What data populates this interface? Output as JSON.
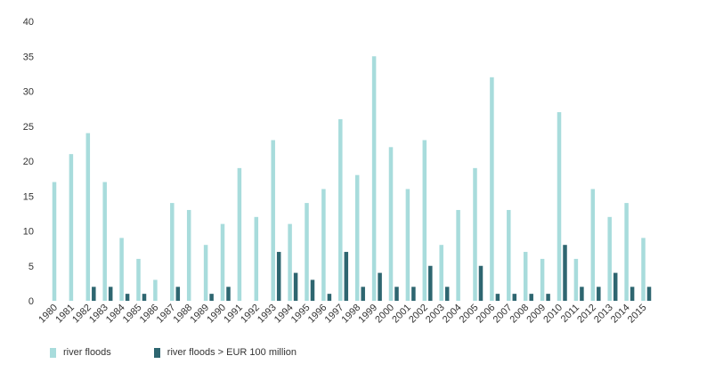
{
  "chart_data": {
    "type": "bar",
    "title": "",
    "xlabel": "",
    "ylabel": "",
    "ylim": [
      0,
      40
    ],
    "yticks": [
      0,
      5,
      10,
      15,
      20,
      25,
      30,
      35,
      40
    ],
    "grid": false,
    "legend_position": "bottom-left",
    "categories": [
      "1980",
      "1981",
      "1982",
      "1983",
      "1984",
      "1985",
      "1986",
      "1987",
      "1988",
      "1989",
      "1990",
      "1991",
      "1992",
      "1993",
      "1994",
      "1995",
      "1996",
      "1997",
      "1998",
      "1999",
      "2000",
      "2001",
      "2002",
      "2003",
      "2004",
      "2005",
      "2006",
      "2007",
      "2008",
      "2009",
      "2010",
      "2011",
      "2012",
      "2013",
      "2014",
      "2015"
    ],
    "series": [
      {
        "name": "river floods",
        "color": "#a8dcdc",
        "values": [
          17,
          21,
          24,
          17,
          9,
          6,
          3,
          14,
          13,
          8,
          11,
          19,
          12,
          23,
          11,
          14,
          16,
          26,
          18,
          35,
          22,
          16,
          23,
          8,
          13,
          19,
          32,
          13,
          7,
          6,
          27,
          6,
          16,
          12,
          14,
          9
        ]
      },
      {
        "name": "river floods > EUR 100 million",
        "color": "#2e6670",
        "values": [
          0,
          0,
          2,
          2,
          1,
          1,
          0,
          2,
          0,
          1,
          2,
          0,
          0,
          7,
          4,
          3,
          1,
          7,
          2,
          4,
          2,
          2,
          5,
          2,
          0,
          5,
          1,
          1,
          1,
          1,
          8,
          2,
          2,
          4,
          2,
          2
        ]
      }
    ]
  }
}
